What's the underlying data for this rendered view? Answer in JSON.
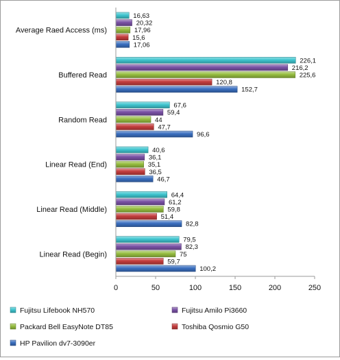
{
  "chart_data": {
    "type": "bar",
    "orientation": "horizontal",
    "categories": [
      "Average Raed Access (ms)",
      "Buffered Read",
      "Random Read",
      "Linear Read (End)",
      "Linear Read (Middle)",
      "Linear Read (Begin)"
    ],
    "series": [
      {
        "name": "Fujitsu Lifebook NH570",
        "color": "#3fc5cf",
        "values": [
          16.63,
          226.1,
          67.6,
          40.6,
          64.4,
          79.5
        ],
        "labels": [
          "16,63",
          "226,1",
          "67,6",
          "40,6",
          "64,4",
          "79,5"
        ]
      },
      {
        "name": "Fujitsu Amilo Pi3660",
        "color": "#7b52a6",
        "values": [
          20.32,
          216.2,
          59.4,
          36.1,
          61.2,
          82.3
        ],
        "labels": [
          "20,32",
          "216,2",
          "59,4",
          "36,1",
          "61,2",
          "82,3"
        ]
      },
      {
        "name": "Packard Bell EasyNote  DT85",
        "color": "#95bd3f",
        "values": [
          17.96,
          225.6,
          44,
          35.1,
          59.8,
          75
        ],
        "labels": [
          "17,96",
          "225,6",
          "44",
          "35,1",
          "59,8",
          "75"
        ]
      },
      {
        "name": "Toshiba Qosmio  G50",
        "color": "#c43d3d",
        "values": [
          15.6,
          120.8,
          47.7,
          36.5,
          51.4,
          59.7
        ],
        "labels": [
          "15,6",
          "120,8",
          "47,7",
          "36,5",
          "51,4",
          "59,7"
        ]
      },
      {
        "name": "HP Pavilion  dv7-3090er",
        "color": "#3a6fc0",
        "values": [
          17.06,
          152.7,
          96.6,
          46.7,
          82.8,
          100.2
        ],
        "labels": [
          "17,06",
          "152,7",
          "96,6",
          "46,7",
          "82,8",
          "100,2"
        ]
      }
    ],
    "xlim": [
      0,
      250
    ],
    "xticks": [
      0,
      50,
      100,
      150,
      200,
      250
    ],
    "xtick_labels": [
      "0",
      "50",
      "100",
      "150",
      "200",
      "250"
    ],
    "grid": false,
    "legend_position": "bottom",
    "legend_columns": 2
  }
}
